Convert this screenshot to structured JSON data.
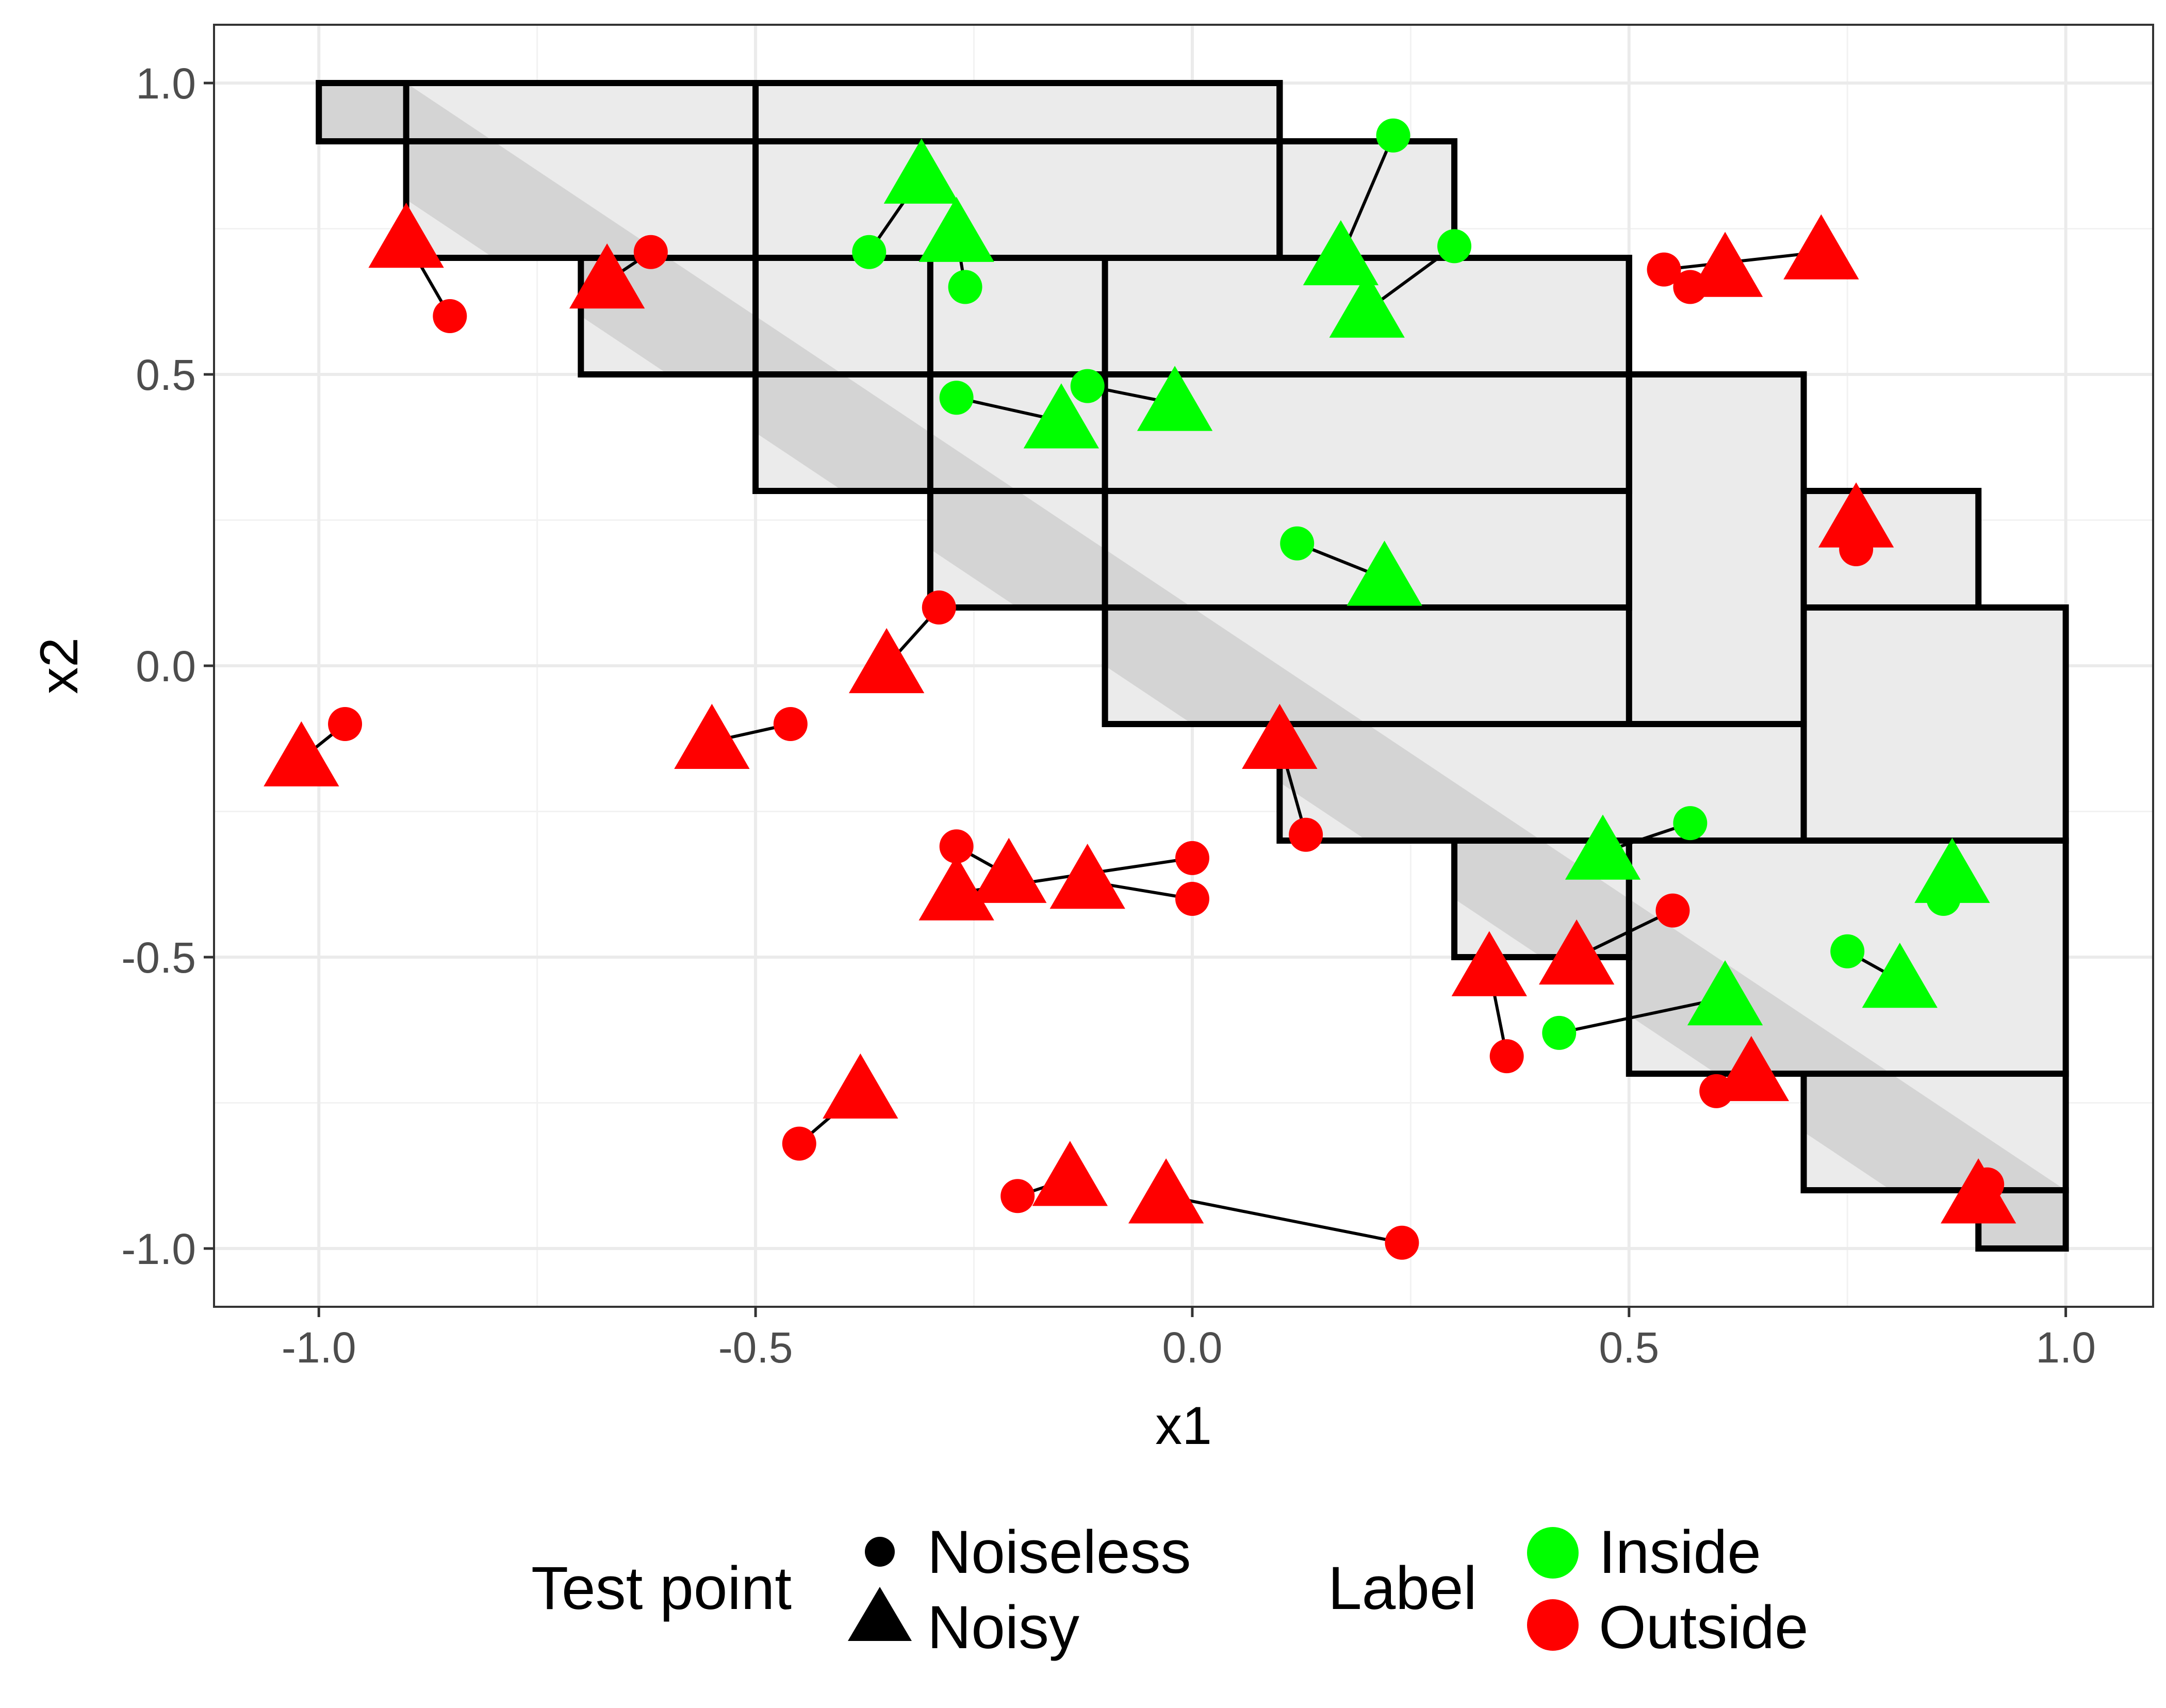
{
  "chart_data": {
    "type": "scatter",
    "xlabel": "x1",
    "ylabel": "x2",
    "xlim": [
      -1.12,
      1.1
    ],
    "ylim": [
      -1.1,
      1.1
    ],
    "grid": true,
    "x_ticks": [
      -1.0,
      -0.5,
      0.0,
      0.5,
      1.0
    ],
    "y_ticks": [
      -1.0,
      -0.5,
      0.0,
      0.5,
      1.0
    ],
    "x_tick_labels": [
      "-1.0",
      "-0.5",
      "0.0",
      "0.5",
      "1.0"
    ],
    "y_tick_labels": [
      "-1.0",
      "-0.5",
      "0.0",
      "0.5",
      "1.0"
    ],
    "legend_position": "bottom",
    "legend": {
      "shape": {
        "title": "Test point",
        "entries": [
          "Noiseless",
          "Noisy"
        ]
      },
      "color": {
        "title": "Label",
        "entries": [
          "Inside",
          "Outside"
        ]
      }
    },
    "colors": {
      "Inside": "#00ff00",
      "Outside": "#ff0000",
      "box_fill": "#ebebeb",
      "band_fill": "#d4d4d4"
    },
    "diagonal_band": {
      "x_range": [
        -1.0,
        1.0
      ],
      "intercept_lower": -0.1,
      "intercept_upper": 0.1
    },
    "boxes": [
      {
        "x": [
          -1.0,
          0.1
        ],
        "y": [
          0.9,
          1.0
        ]
      },
      {
        "x": [
          -0.9,
          0.1
        ],
        "y": [
          0.7,
          1.0
        ]
      },
      {
        "x": [
          -0.5,
          0.1
        ],
        "y": [
          0.7,
          1.0
        ]
      },
      {
        "x": [
          0.1,
          0.3
        ],
        "y": [
          0.7,
          0.9
        ]
      },
      {
        "x": [
          -0.7,
          0.5
        ],
        "y": [
          0.5,
          0.7
        ]
      },
      {
        "x": [
          -0.5,
          0.5
        ],
        "y": [
          0.3,
          0.7
        ]
      },
      {
        "x": [
          -0.3,
          0.5
        ],
        "y": [
          0.1,
          0.7
        ]
      },
      {
        "x": [
          -0.1,
          0.5
        ],
        "y": [
          -0.1,
          0.7
        ]
      },
      {
        "x": [
          -0.1,
          0.7
        ],
        "y": [
          -0.1,
          0.5
        ]
      },
      {
        "x": [
          0.7,
          0.9
        ],
        "y": [
          0.1,
          0.3
        ]
      },
      {
        "x": [
          0.1,
          0.7
        ],
        "y": [
          -0.3,
          -0.1
        ]
      },
      {
        "x": [
          0.7,
          1.0
        ],
        "y": [
          -0.3,
          0.1
        ]
      },
      {
        "x": [
          0.3,
          0.5
        ],
        "y": [
          -0.5,
          -0.3
        ]
      },
      {
        "x": [
          0.5,
          1.0
        ],
        "y": [
          -0.7,
          -0.3
        ]
      },
      {
        "x": [
          0.7,
          1.0
        ],
        "y": [
          -0.9,
          -0.7
        ]
      },
      {
        "x": [
          0.9,
          1.0
        ],
        "y": [
          -1.0,
          -0.9
        ]
      }
    ],
    "pairs": [
      {
        "label": "Outside",
        "noiseless": [
          -0.85,
          0.6
        ],
        "noisy": [
          -0.9,
          0.73
        ]
      },
      {
        "label": "Outside",
        "noiseless": [
          -0.62,
          0.71
        ],
        "noisy": [
          -0.67,
          0.66
        ]
      },
      {
        "label": "Inside",
        "noiseless": [
          -0.37,
          0.71
        ],
        "noisy": [
          -0.31,
          0.84
        ]
      },
      {
        "label": "Inside",
        "noiseless": [
          -0.26,
          0.65
        ],
        "noisy": [
          -0.27,
          0.74
        ]
      },
      {
        "label": "Inside",
        "noiseless": [
          0.23,
          0.91
        ],
        "noisy": [
          0.17,
          0.7
        ]
      },
      {
        "label": "Inside",
        "noiseless": [
          0.3,
          0.72
        ],
        "noisy": [
          0.2,
          0.61
        ]
      },
      {
        "label": "Outside",
        "noiseless": [
          0.54,
          0.68
        ],
        "noisy": [
          0.72,
          0.71
        ]
      },
      {
        "label": "Outside",
        "noiseless": [
          0.57,
          0.65
        ],
        "noisy": [
          0.61,
          0.68
        ]
      },
      {
        "label": "Inside",
        "noiseless": [
          -0.27,
          0.46
        ],
        "noisy": [
          -0.15,
          0.42
        ]
      },
      {
        "label": "Inside",
        "noiseless": [
          -0.12,
          0.48
        ],
        "noisy": [
          -0.02,
          0.45
        ]
      },
      {
        "label": "Outside",
        "noiseless": [
          0.76,
          0.2
        ],
        "noisy": [
          0.76,
          0.25
        ]
      },
      {
        "label": "Inside",
        "noiseless": [
          0.12,
          0.21
        ],
        "noisy": [
          0.22,
          0.15
        ]
      },
      {
        "label": "Outside",
        "noiseless": [
          -0.29,
          0.1
        ],
        "noisy": [
          -0.35,
          0.0
        ]
      },
      {
        "label": "Outside",
        "noiseless": [
          -0.97,
          -0.1
        ],
        "noisy": [
          -1.02,
          -0.16
        ]
      },
      {
        "label": "Outside",
        "noiseless": [
          -0.46,
          -0.1
        ],
        "noisy": [
          -0.55,
          -0.13
        ]
      },
      {
        "label": "Outside",
        "noiseless": [
          0.13,
          -0.29
        ],
        "noisy": [
          0.1,
          -0.13
        ]
      },
      {
        "label": "Inside",
        "noiseless": [
          0.57,
          -0.27
        ],
        "noisy": [
          0.47,
          -0.32
        ]
      },
      {
        "label": "Inside",
        "noiseless": [
          0.86,
          -0.4
        ],
        "noisy": [
          0.87,
          -0.36
        ]
      },
      {
        "label": "Outside",
        "noiseless": [
          -0.27,
          -0.31
        ],
        "noisy": [
          -0.21,
          -0.36
        ]
      },
      {
        "label": "Outside",
        "noiseless": [
          0.0,
          -0.33
        ],
        "noisy": [
          -0.27,
          -0.39
        ]
      },
      {
        "label": "Outside",
        "noiseless": [
          0.0,
          -0.4
        ],
        "noisy": [
          -0.12,
          -0.37
        ]
      },
      {
        "label": "Outside",
        "noiseless": [
          0.55,
          -0.42
        ],
        "noisy": [
          0.44,
          -0.5
        ]
      },
      {
        "label": "Outside",
        "noiseless": [
          0.36,
          -0.67
        ],
        "noisy": [
          0.34,
          -0.52
        ]
      },
      {
        "label": "Inside",
        "noiseless": [
          0.75,
          -0.49
        ],
        "noisy": [
          0.81,
          -0.54
        ]
      },
      {
        "label": "Inside",
        "noiseless": [
          0.42,
          -0.63
        ],
        "noisy": [
          0.61,
          -0.57
        ]
      },
      {
        "label": "Outside",
        "noiseless": [
          0.6,
          -0.73
        ],
        "noisy": [
          0.64,
          -0.7
        ]
      },
      {
        "label": "Outside",
        "noiseless": [
          -0.45,
          -0.82
        ],
        "noisy": [
          -0.38,
          -0.73
        ]
      },
      {
        "label": "Outside",
        "noiseless": [
          -0.2,
          -0.91
        ],
        "noisy": [
          -0.14,
          -0.88
        ]
      },
      {
        "label": "Outside",
        "noiseless": [
          0.24,
          -0.99
        ],
        "noisy": [
          -0.03,
          -0.91
        ]
      },
      {
        "label": "Outside",
        "noiseless": [
          0.91,
          -0.89
        ],
        "noisy": [
          0.9,
          -0.91
        ]
      }
    ]
  }
}
